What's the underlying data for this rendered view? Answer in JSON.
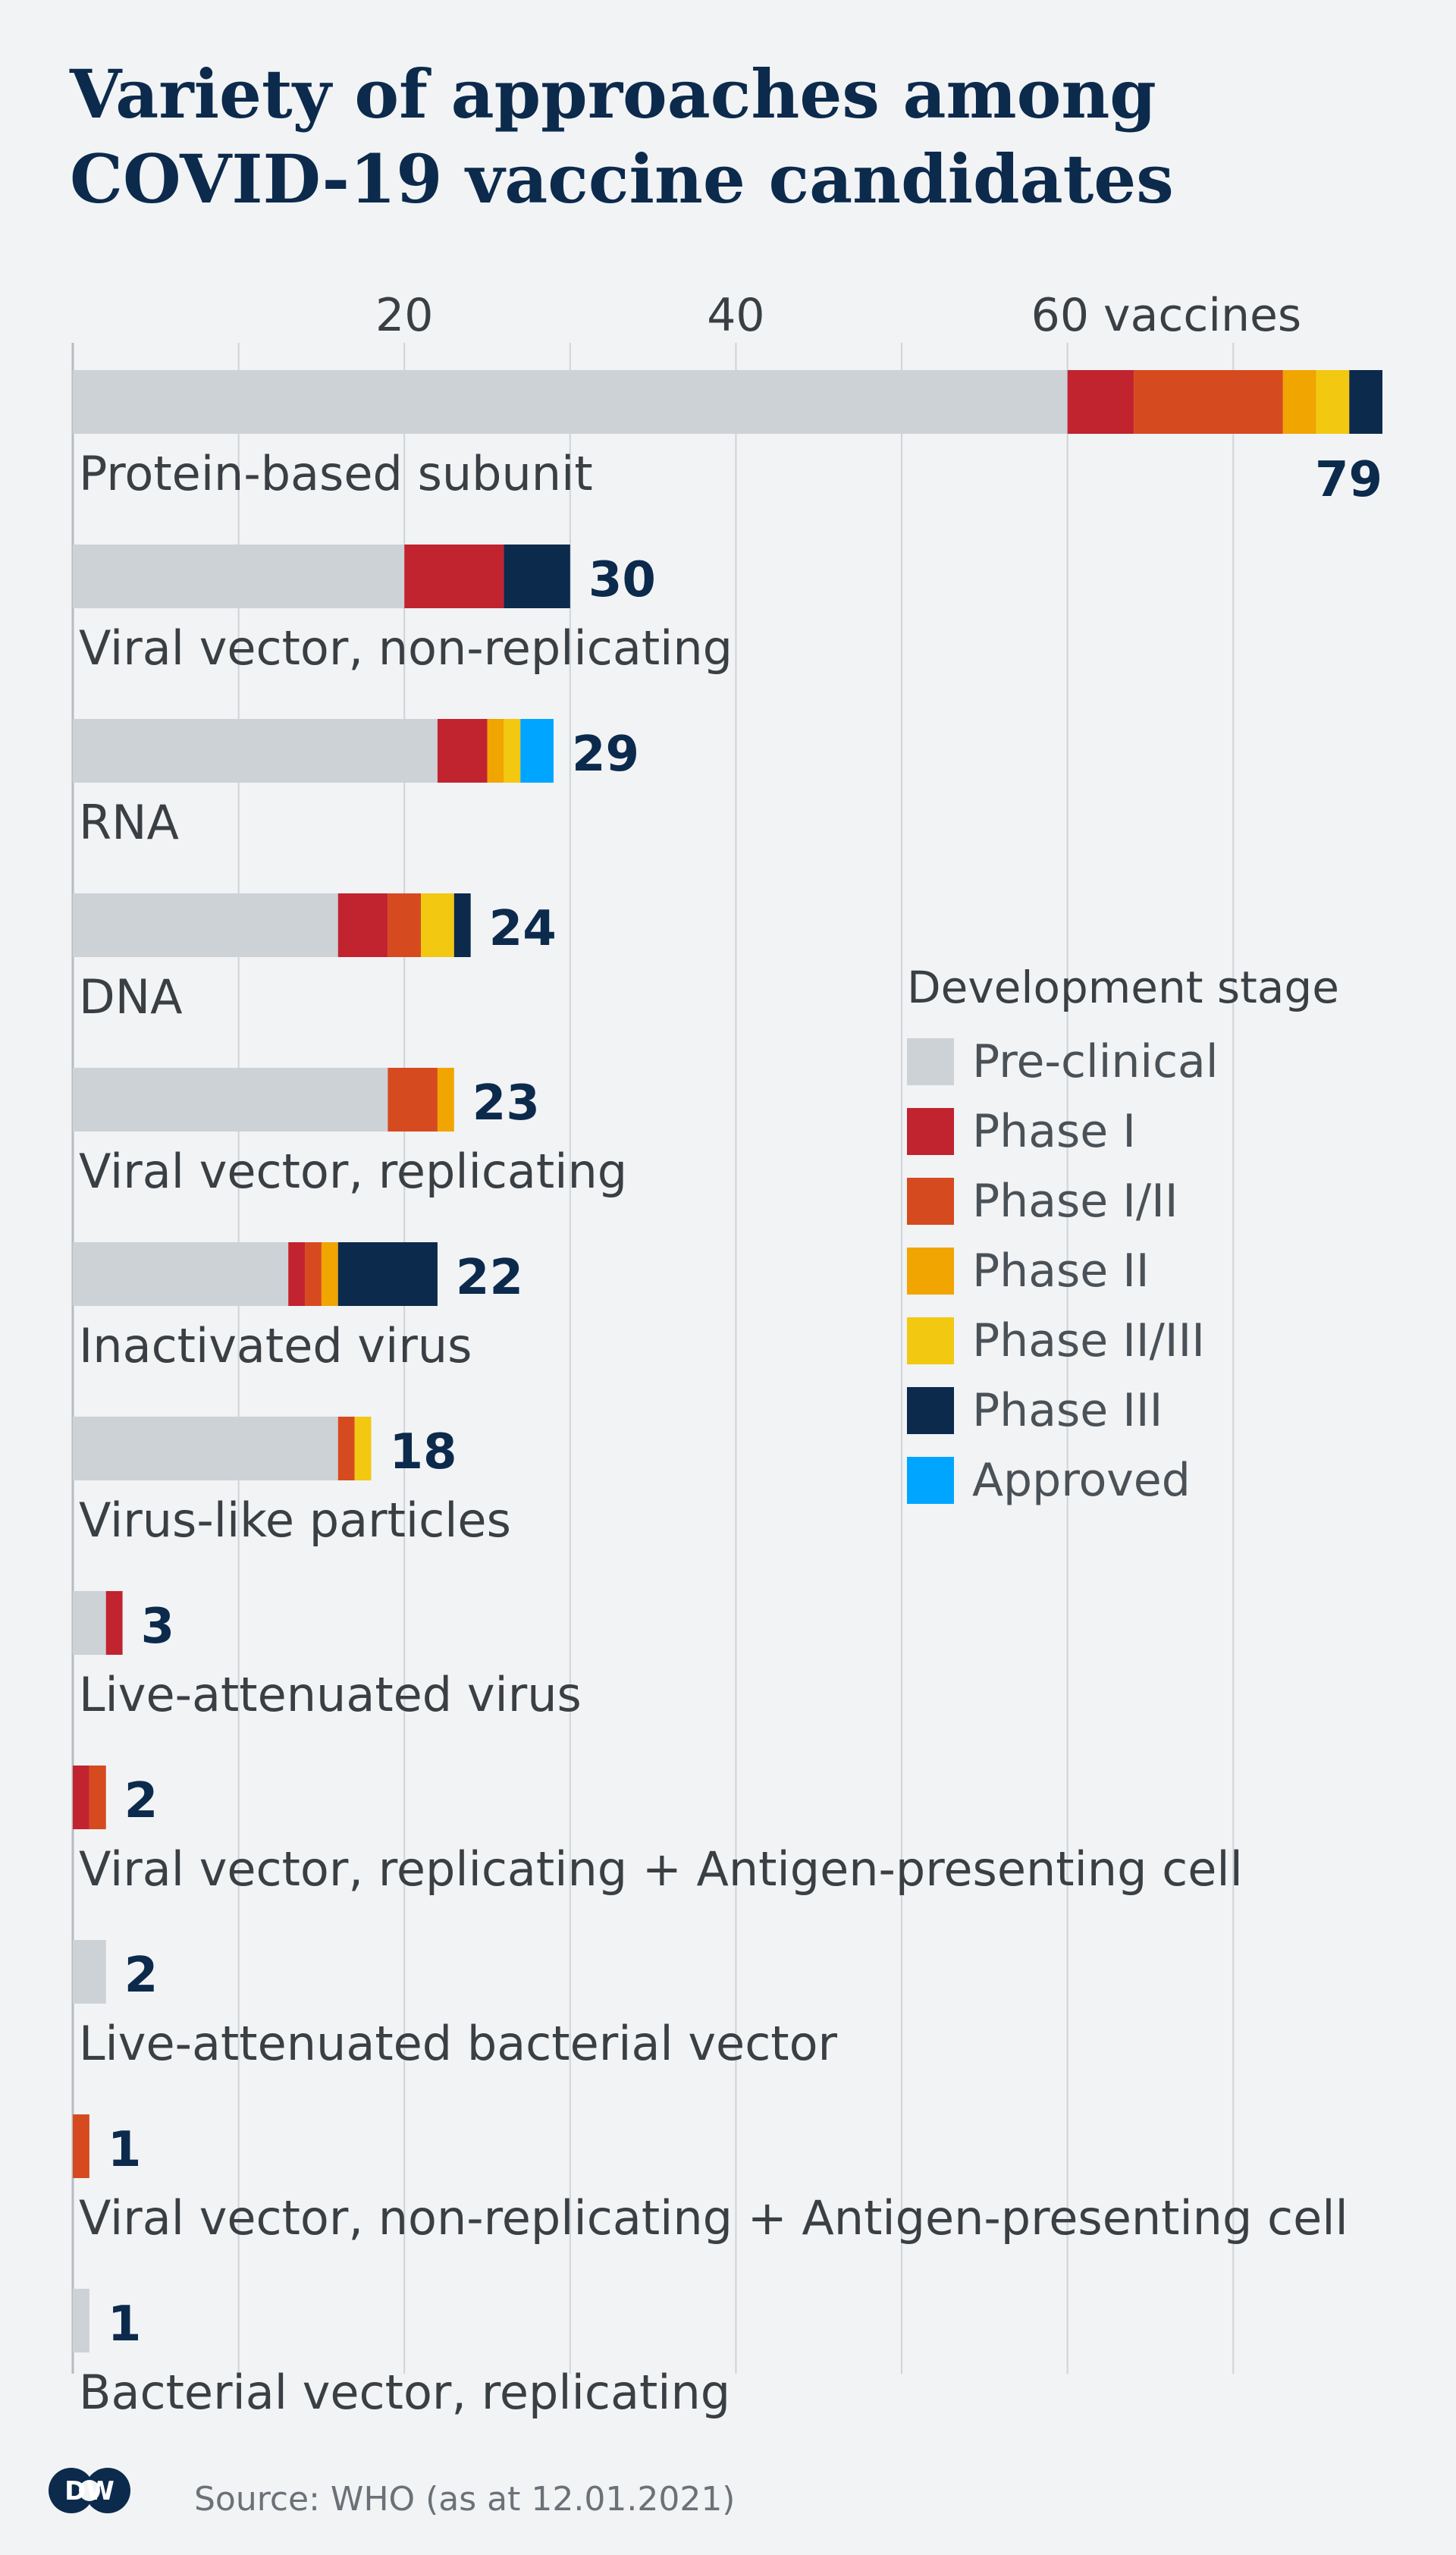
{
  "title_lines": [
    "Variety of approaches among",
    "COVID-19 vaccine candidates"
  ],
  "source": "Source: WHO (as at 12.01.2021)",
  "logo": "DW",
  "legend": {
    "title": "Development stage"
  },
  "chart_data": {
    "type": "bar",
    "orientation": "horizontal",
    "stacked": true,
    "xlim": [
      0,
      79
    ],
    "x_ticks": [
      20,
      40,
      60
    ],
    "x_tick_labels": [
      "20",
      "40",
      "60 vaccines"
    ],
    "grid": true,
    "legend_position": "right",
    "categories": [
      "Protein-based subunit",
      "Viral vector, non-replicating",
      "RNA",
      "DNA",
      "Viral vector, replicating",
      "Inactivated virus",
      "Virus-like particles",
      "Live-attenuated virus",
      "Viral vector, replicating + Antigen-presenting cell",
      "Live-attenuated bacterial vector",
      "Viral vector, non-replicating + Antigen-presenting cell",
      "Bacterial vector, replicating"
    ],
    "totals": [
      79,
      30,
      29,
      24,
      23,
      22,
      18,
      3,
      2,
      2,
      1,
      1
    ],
    "series": [
      {
        "name": "Pre-clinical",
        "color": "#cdd2d7",
        "values": [
          60,
          20,
          22,
          16,
          19,
          13,
          16,
          2,
          0,
          2,
          0,
          1
        ]
      },
      {
        "name": "Phase I",
        "color": "#c1232f",
        "values": [
          4,
          6,
          3,
          3,
          0,
          1,
          0,
          1,
          1,
          0,
          0,
          0
        ]
      },
      {
        "name": "Phase I/II",
        "color": "#d64a1f",
        "values": [
          9,
          0,
          0,
          2,
          3,
          1,
          1,
          0,
          1,
          0,
          1,
          0
        ]
      },
      {
        "name": "Phase II",
        "color": "#f0a500",
        "values": [
          2,
          0,
          1,
          0,
          1,
          1,
          0,
          0,
          0,
          0,
          0,
          0
        ]
      },
      {
        "name": "Phase II/III",
        "color": "#f2c811",
        "values": [
          2,
          0,
          1,
          2,
          0,
          0,
          1,
          0,
          0,
          0,
          0,
          0
        ]
      },
      {
        "name": "Phase III",
        "color": "#0c2a4c",
        "values": [
          2,
          4,
          0,
          1,
          0,
          6,
          0,
          0,
          0,
          0,
          0,
          0
        ]
      },
      {
        "name": "Approved",
        "color": "#00a5ff",
        "values": [
          0,
          0,
          2,
          0,
          0,
          0,
          0,
          0,
          0,
          0,
          0,
          0
        ]
      }
    ]
  }
}
